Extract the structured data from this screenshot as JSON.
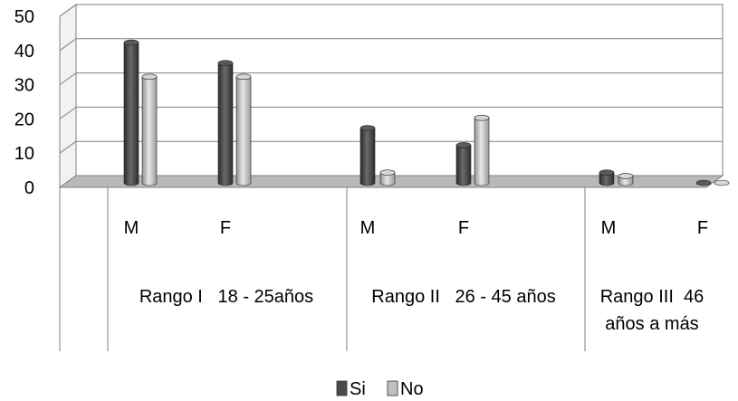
{
  "chart_data": {
    "type": "bar",
    "style": "3d-cylinder",
    "ylim": [
      0,
      50
    ],
    "yticks": [
      "0",
      "10",
      "20",
      "30",
      "40",
      "50"
    ],
    "grid": true,
    "legend_position": "bottom",
    "categories": [
      "M",
      "F",
      "M",
      "F",
      "M",
      "F"
    ],
    "groups": [
      {
        "label_lines": [
          "Rango I   18 - 25años"
        ],
        "categories": [
          "M",
          "F"
        ]
      },
      {
        "label_lines": [
          "Rango II   26 - 45 años"
        ],
        "categories": [
          "M",
          "F"
        ]
      },
      {
        "label_lines": [
          "Rango III  46",
          "años a más"
        ],
        "categories": [
          "M",
          "F"
        ]
      }
    ],
    "series": [
      {
        "name": "Si",
        "color": "#4a4a4a",
        "values": [
          41,
          35,
          16,
          11,
          3,
          0
        ]
      },
      {
        "name": "No",
        "color": "#c0c0c0",
        "values": [
          31,
          31,
          3,
          19,
          2,
          0
        ]
      }
    ]
  }
}
